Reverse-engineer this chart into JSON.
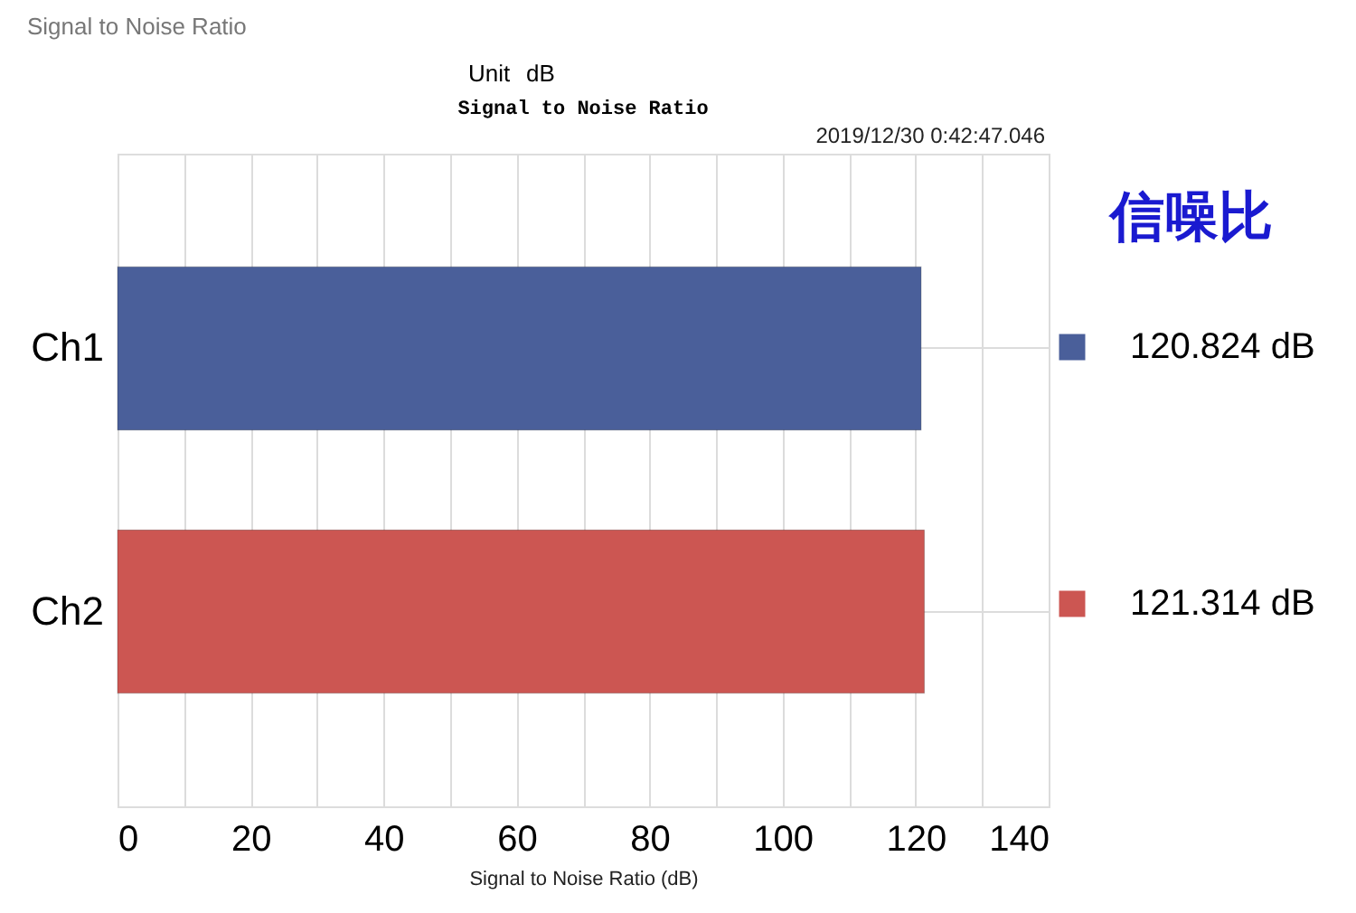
{
  "chart_data": {
    "type": "bar",
    "orientation": "horizontal",
    "stacked": true,
    "title": "Signal to Noise Ratio",
    "xlabel": "Signal to Noise Ratio (dB)",
    "categories": [
      "Ch1",
      "Ch2"
    ],
    "series": [
      {
        "name": "120.824 dB",
        "color": "#4a5f9a",
        "values": [
          120.824,
          null
        ]
      },
      {
        "name": "121.314 dB",
        "color": "#cc5652",
        "values": [
          null,
          121.314
        ]
      }
    ],
    "xlim": [
      0,
      140
    ],
    "xticks": [
      0,
      {
        "value": 10,
        "label": null
      },
      20,
      {
        "value": 30,
        "label": null
      },
      40,
      {
        "value": 50,
        "label": null
      },
      60,
      {
        "value": 70,
        "label": null
      },
      80,
      {
        "value": 90,
        "label": null
      },
      100,
      {
        "value": 110,
        "label": null
      },
      120,
      {
        "value": 130,
        "label": null
      },
      140
    ],
    "grid": true,
    "legend": "right",
    "annotations": [
      "Signal to Noise Ratio",
      "Unit",
      "dB",
      "2019/12/30 0:42:47.046",
      "信噪比"
    ]
  }
}
